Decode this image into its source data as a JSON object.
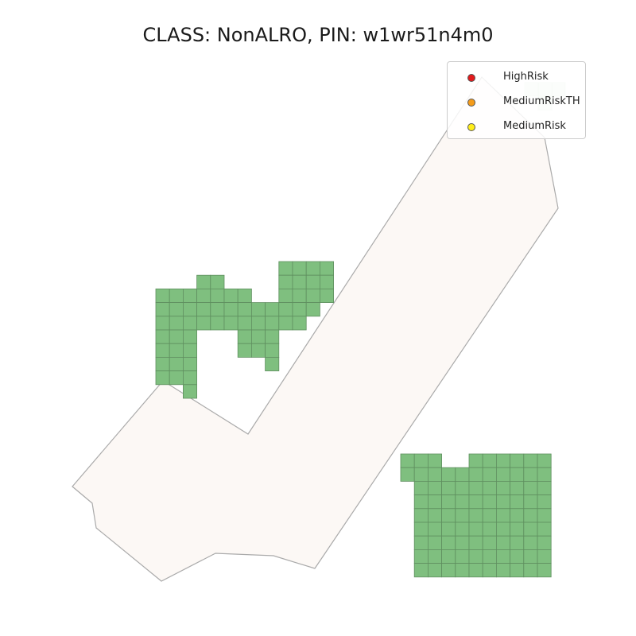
{
  "title": "CLASS: NonALRO, PIN: w1wr51n4m0",
  "parcel": {
    "fill": "#fcf8f5",
    "stroke": "#aaaaaa"
  },
  "grid": {
    "fill": "#7fbf7f",
    "stroke": "#5f8f5f"
  },
  "legend": {
    "items": [
      {
        "label": "HighRisk",
        "color": "#e31a1c"
      },
      {
        "label": "MediumRiskTH",
        "color": "#f59c1a"
      },
      {
        "label": "MediumRisk",
        "color": "#ffee1a"
      }
    ]
  }
}
